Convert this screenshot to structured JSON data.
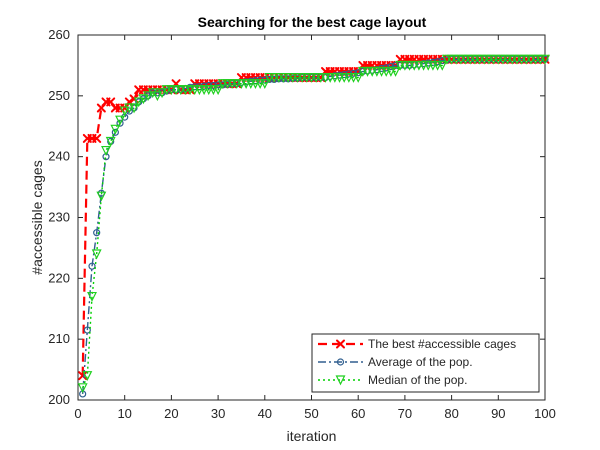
{
  "chart_data": {
    "type": "line",
    "title": "Searching for the best cage layout",
    "xlabel": "iteration",
    "ylabel": "#accessible cages",
    "xlim": [
      0,
      100
    ],
    "ylim": [
      200,
      260
    ],
    "xticks": [
      0,
      10,
      20,
      30,
      40,
      50,
      60,
      70,
      80,
      90,
      100
    ],
    "yticks": [
      200,
      210,
      220,
      230,
      240,
      250,
      260
    ],
    "xtick_labels": [
      "0",
      "10",
      "20",
      "30",
      "40",
      "50",
      "60",
      "70",
      "80",
      "90",
      "100"
    ],
    "ytick_labels": [
      "200",
      "210",
      "220",
      "230",
      "240",
      "250",
      "260"
    ],
    "grid": false,
    "legend_position": "bottom-right",
    "series": [
      {
        "name": "The best #accessible cages",
        "color": "#ff0000",
        "line_style": "dashed",
        "marker": "x",
        "x": [
          1,
          2,
          3,
          4,
          5,
          6,
          7,
          8,
          9,
          10,
          11,
          12,
          13,
          14,
          15,
          16,
          17,
          18,
          19,
          20,
          21,
          22,
          23,
          24,
          25,
          26,
          27,
          28,
          29,
          30,
          31,
          32,
          33,
          34,
          35,
          36,
          37,
          38,
          39,
          40,
          41,
          42,
          43,
          44,
          45,
          46,
          47,
          48,
          49,
          50,
          51,
          52,
          53,
          54,
          55,
          56,
          57,
          58,
          59,
          60,
          61,
          62,
          63,
          64,
          65,
          66,
          67,
          68,
          69,
          70,
          71,
          72,
          73,
          74,
          75,
          76,
          77,
          78,
          79,
          80,
          81,
          82,
          83,
          84,
          85,
          86,
          87,
          88,
          89,
          90,
          91,
          92,
          93,
          94,
          95,
          96,
          97,
          98,
          99,
          100
        ],
        "y": [
          204,
          243,
          243,
          243,
          248,
          249,
          249,
          248,
          248,
          248,
          249,
          249.5,
          251,
          251,
          251,
          251,
          251,
          251,
          251,
          251,
          252,
          251,
          251,
          251,
          252,
          252,
          252,
          252,
          252,
          252,
          252,
          252,
          252,
          252,
          253,
          253,
          253,
          253,
          253,
          253,
          253,
          253,
          253,
          253,
          253,
          253,
          253,
          253,
          253,
          253,
          253,
          253,
          254,
          254,
          254,
          254,
          254,
          254,
          254,
          254,
          255,
          255,
          255,
          255,
          255,
          255,
          255,
          255,
          256,
          256,
          256,
          256,
          256,
          256,
          256,
          256,
          256,
          256,
          256,
          256,
          256,
          256,
          256,
          256,
          256,
          256,
          256,
          256,
          256,
          256,
          256,
          256,
          256,
          256,
          256,
          256,
          256,
          256,
          256,
          256
        ]
      },
      {
        "name": "Average of the pop.",
        "color": "#305f8f",
        "line_style": "dashdot",
        "marker": "o",
        "x": [
          1,
          2,
          3,
          4,
          5,
          6,
          7,
          8,
          9,
          10,
          11,
          12,
          13,
          14,
          15,
          16,
          17,
          18,
          19,
          20,
          21,
          22,
          23,
          24,
          25,
          26,
          27,
          28,
          29,
          30,
          31,
          32,
          33,
          34,
          35,
          36,
          37,
          38,
          39,
          40,
          41,
          42,
          43,
          44,
          45,
          46,
          47,
          48,
          49,
          50,
          51,
          52,
          53,
          54,
          55,
          56,
          57,
          58,
          59,
          60,
          61,
          62,
          63,
          64,
          65,
          66,
          67,
          68,
          69,
          70,
          71,
          72,
          73,
          74,
          75,
          76,
          77,
          78,
          79,
          80,
          81,
          82,
          83,
          84,
          85,
          86,
          87,
          88,
          89,
          90,
          91,
          92,
          93,
          94,
          95,
          96,
          97,
          98,
          99,
          100
        ],
        "y": [
          201,
          211.5,
          222,
          227.5,
          234,
          240,
          242.5,
          244,
          245.5,
          246.5,
          247.5,
          248,
          249,
          249.5,
          250,
          250.5,
          250.5,
          250.5,
          250.8,
          251,
          251,
          251,
          251.2,
          251.4,
          251.5,
          251.5,
          251.6,
          251.7,
          251.7,
          251.8,
          251.8,
          251.9,
          252,
          252,
          252.2,
          252.3,
          252.4,
          252.5,
          252.6,
          252.6,
          252.7,
          252.7,
          252.8,
          252.8,
          252.8,
          252.9,
          252.9,
          253,
          253,
          253,
          253,
          253,
          253,
          253.2,
          253.3,
          253.4,
          253.5,
          253.6,
          253.7,
          253.8,
          254,
          254.1,
          254.2,
          254.3,
          254.5,
          254.6,
          254.8,
          255,
          255,
          255,
          255,
          255.1,
          255.2,
          255.3,
          255.4,
          255.5,
          255.6,
          255.8,
          255.9,
          256,
          256,
          256,
          256,
          256,
          256,
          256,
          256,
          256,
          256,
          256,
          256,
          256,
          256,
          256,
          256,
          256,
          256,
          256,
          256,
          256
        ]
      },
      {
        "name": "Median of the pop.",
        "color": "#00d000",
        "marker_color": "#20d020",
        "line_style": "dotted",
        "marker": "v",
        "x": [
          1,
          2,
          3,
          4,
          5,
          6,
          7,
          8,
          9,
          10,
          11,
          12,
          13,
          14,
          15,
          16,
          17,
          18,
          19,
          20,
          21,
          22,
          23,
          24,
          25,
          26,
          27,
          28,
          29,
          30,
          31,
          32,
          33,
          34,
          35,
          36,
          37,
          38,
          39,
          40,
          41,
          42,
          43,
          44,
          45,
          46,
          47,
          48,
          49,
          50,
          51,
          52,
          53,
          54,
          55,
          56,
          57,
          58,
          59,
          60,
          61,
          62,
          63,
          64,
          65,
          66,
          67,
          68,
          69,
          70,
          71,
          72,
          73,
          74,
          75,
          76,
          77,
          78,
          79,
          80,
          81,
          82,
          83,
          84,
          85,
          86,
          87,
          88,
          89,
          90,
          91,
          92,
          93,
          94,
          95,
          96,
          97,
          98,
          99,
          100
        ],
        "y": [
          202,
          204,
          217,
          224,
          233.5,
          241,
          242.5,
          244.5,
          246,
          247.5,
          248,
          248,
          249,
          249.5,
          250,
          250.5,
          250,
          250.5,
          251,
          251,
          251,
          251,
          251,
          251,
          251,
          251,
          251,
          251,
          251,
          251,
          252,
          252,
          252,
          252,
          252,
          252,
          252,
          252,
          252,
          252,
          253,
          253,
          253,
          253,
          253,
          253,
          253,
          253,
          253,
          253,
          253,
          253,
          253,
          253,
          253,
          253,
          253,
          253,
          253,
          253,
          254,
          254,
          254,
          254,
          254,
          254,
          254,
          254,
          255,
          255,
          255,
          255,
          255,
          255,
          255,
          255,
          255,
          255,
          256,
          256,
          256,
          256,
          256,
          256,
          256,
          256,
          256,
          256,
          256,
          256,
          256,
          256,
          256,
          256,
          256,
          256,
          256,
          256,
          256,
          256
        ]
      }
    ]
  }
}
